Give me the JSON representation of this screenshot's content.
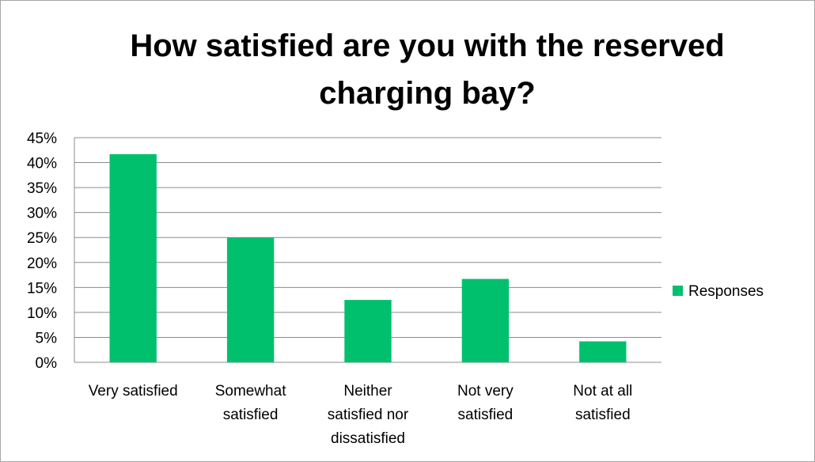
{
  "chart_data": {
    "type": "bar",
    "title": "How satisfied are you with the reserved\ncharging bay?",
    "categories": [
      [
        "Very satisfied"
      ],
      [
        "Somewhat",
        "satisfied"
      ],
      [
        "Neither",
        "satisfied nor",
        "dissatisfied"
      ],
      [
        "Not very",
        "satisfied"
      ],
      [
        "Not at all",
        "satisfied"
      ]
    ],
    "series": [
      {
        "name": "Responses",
        "values": [
          41.7,
          25.0,
          12.5,
          16.7,
          4.2
        ],
        "color": "#00c06e"
      }
    ],
    "y_ticks": [
      "0%",
      "5%",
      "10%",
      "15%",
      "20%",
      "25%",
      "30%",
      "35%",
      "40%",
      "45%"
    ],
    "ylim": [
      0,
      45
    ],
    "grid": true,
    "legend": "right",
    "xlabel": "",
    "ylabel": ""
  }
}
